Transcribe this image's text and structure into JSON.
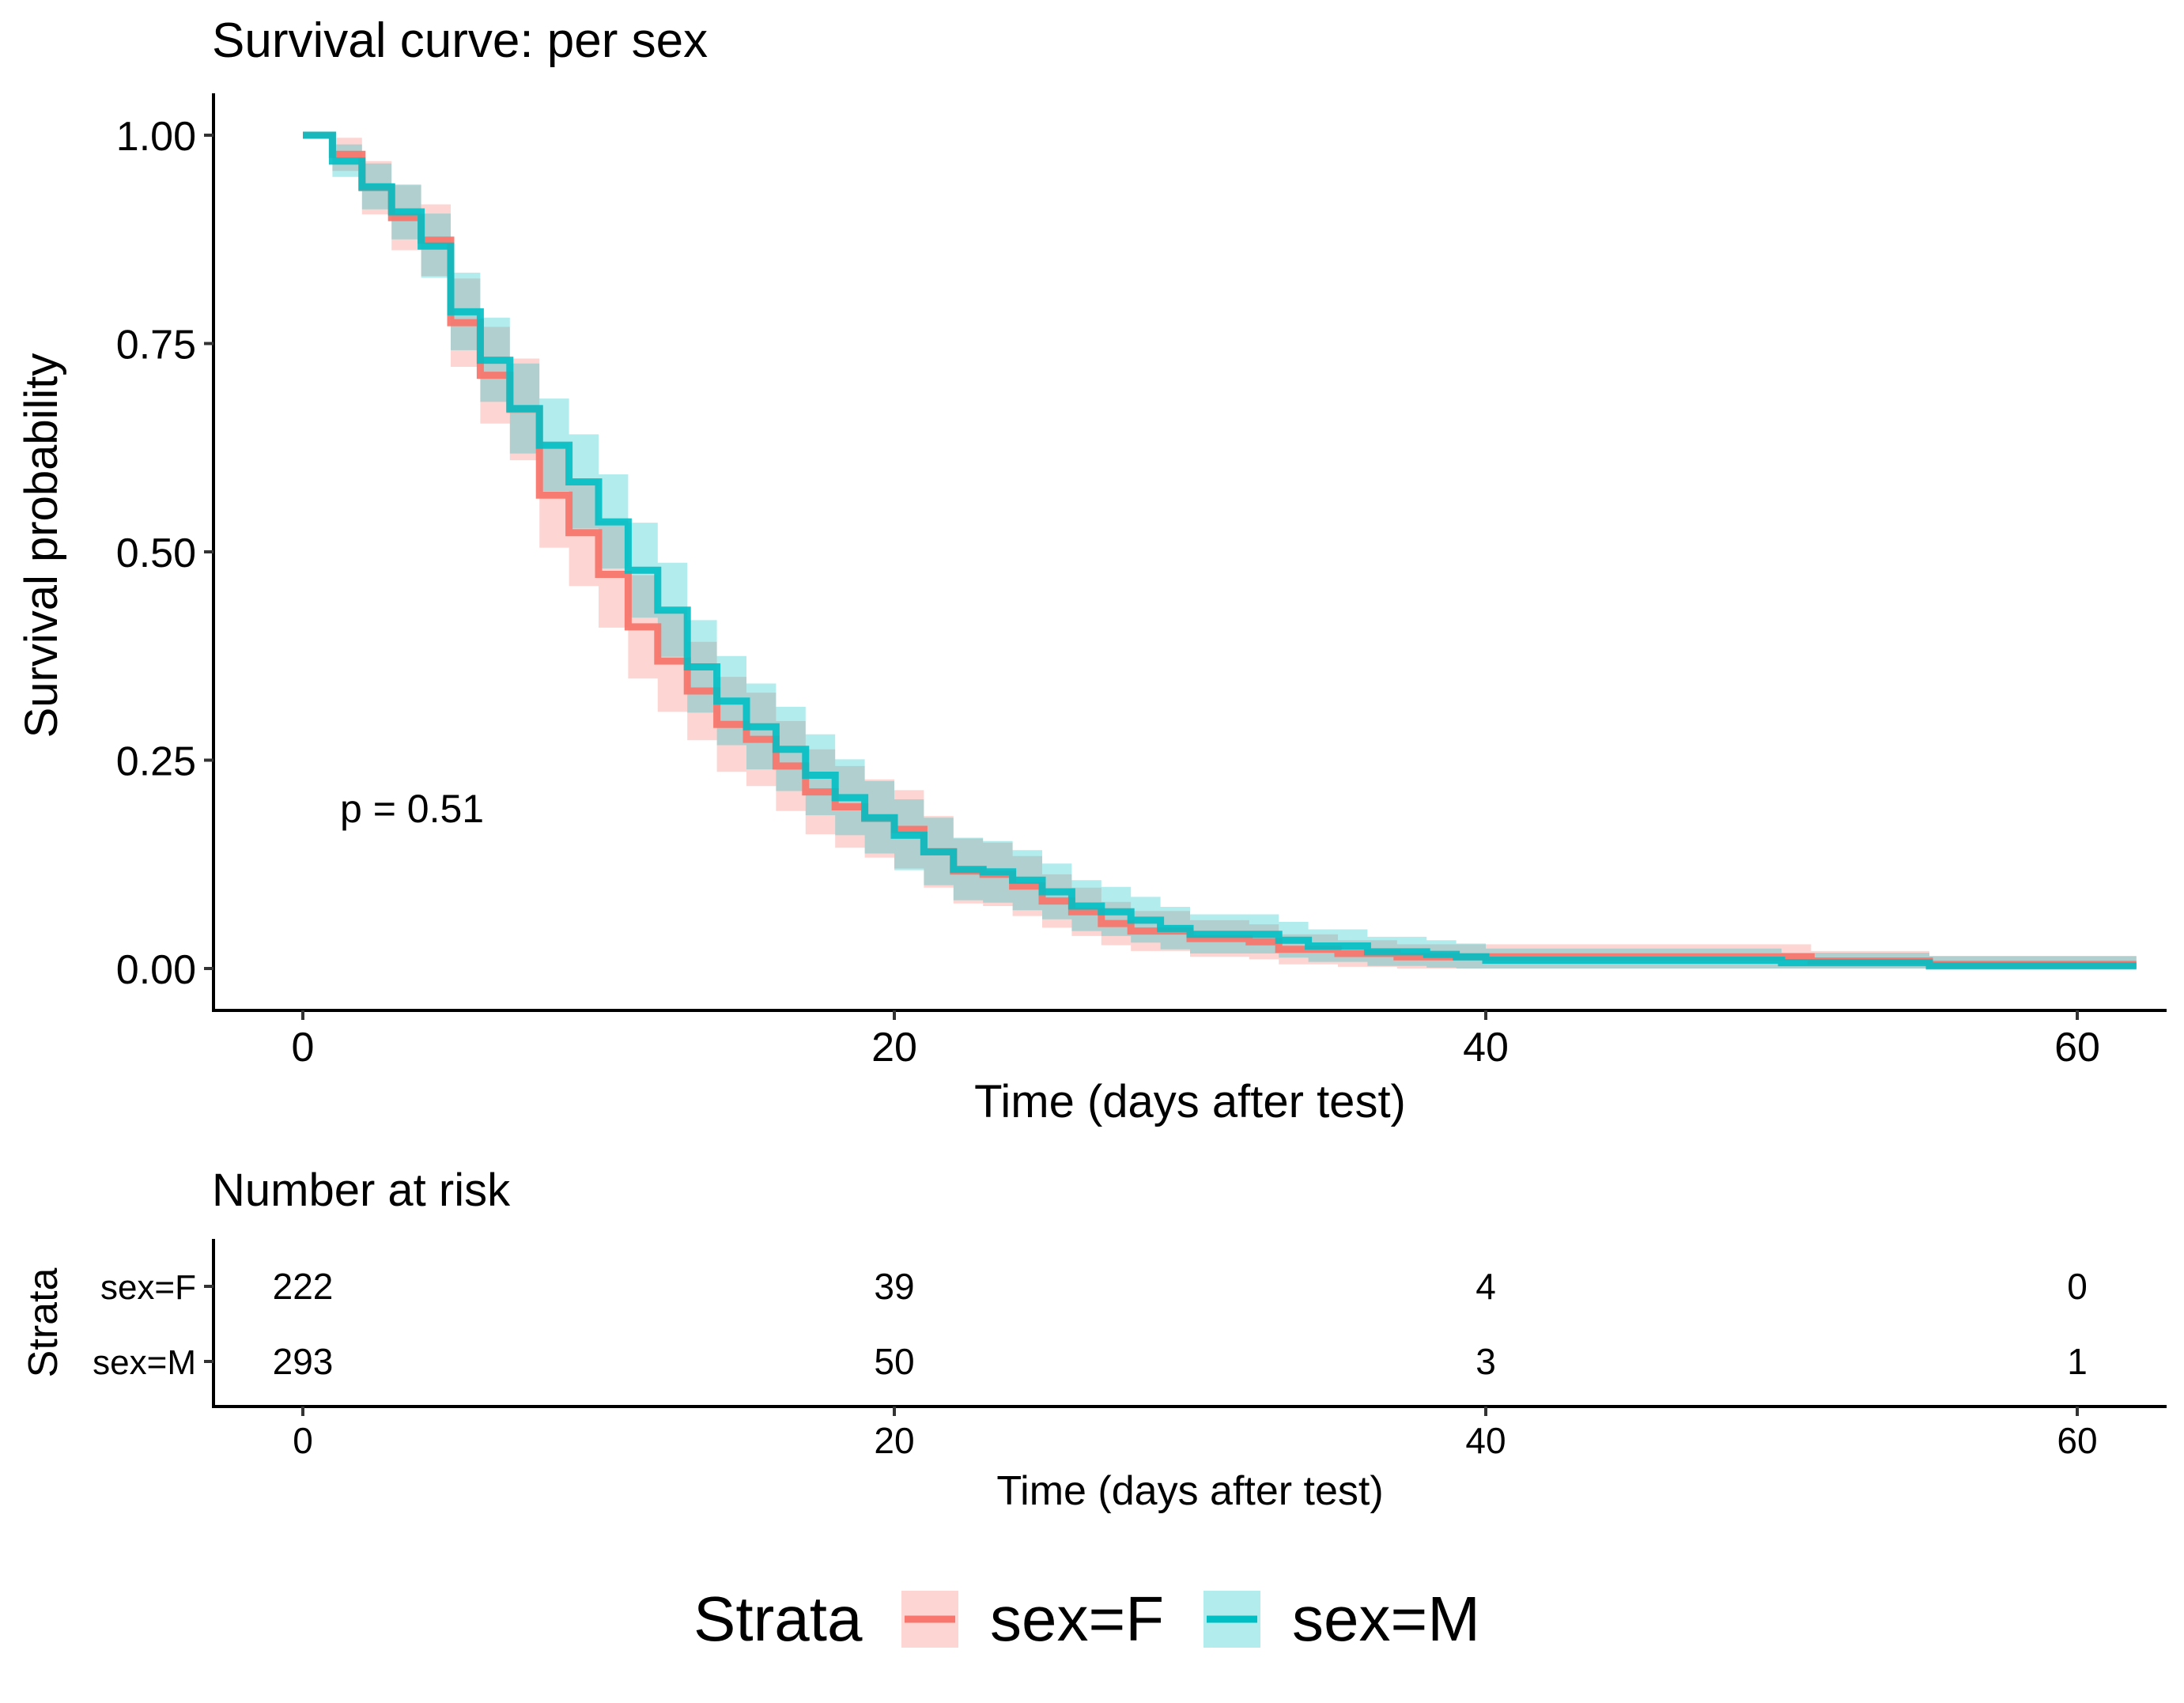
{
  "chart_data": {
    "type": "line",
    "title": "Survival curve: per sex",
    "xlabel": "Time (days after test)",
    "ylabel": "Survival probability",
    "xlim": [
      -3,
      63
    ],
    "ylim": [
      -0.05,
      1.05
    ],
    "x_ticks": [
      0,
      20,
      40,
      60
    ],
    "y_ticks": [
      "0.00",
      "0.25",
      "0.50",
      "0.75",
      "1.00"
    ],
    "y_tick_values": [
      0,
      0.25,
      0.5,
      0.75,
      1
    ],
    "grid": false,
    "annotation": "p = 0.51",
    "series": [
      {
        "name": "sex=F",
        "color": "#F8766D",
        "steps": [
          [
            0,
            1.0
          ],
          [
            1,
            0.977
          ],
          [
            2,
            0.937
          ],
          [
            3,
            0.901
          ],
          [
            4,
            0.874
          ],
          [
            5,
            0.775
          ],
          [
            6,
            0.712
          ],
          [
            7,
            0.671
          ],
          [
            8,
            0.568
          ],
          [
            9,
            0.523
          ],
          [
            10,
            0.473
          ],
          [
            11,
            0.41
          ],
          [
            12,
            0.369
          ],
          [
            13,
            0.333
          ],
          [
            14,
            0.293
          ],
          [
            15,
            0.275
          ],
          [
            16,
            0.243
          ],
          [
            17,
            0.212
          ],
          [
            18,
            0.194
          ],
          [
            19,
            0.18
          ],
          [
            20,
            0.167
          ],
          [
            21,
            0.14
          ],
          [
            22,
            0.117
          ],
          [
            23,
            0.113
          ],
          [
            24,
            0.099
          ],
          [
            25,
            0.081
          ],
          [
            26,
            0.068
          ],
          [
            27,
            0.054
          ],
          [
            28,
            0.045
          ],
          [
            30,
            0.036
          ],
          [
            32,
            0.032
          ],
          [
            33,
            0.023
          ],
          [
            35,
            0.018
          ],
          [
            37,
            0.014
          ],
          [
            40,
            0.014
          ],
          [
            51,
            0.009
          ],
          [
            55,
            0.005
          ],
          [
            62,
            0.005
          ]
        ],
        "band": [
          [
            0,
            1.0,
            1.0
          ],
          [
            1,
            0.957,
            0.997
          ],
          [
            2,
            0.905,
            0.969
          ],
          [
            3,
            0.862,
            0.94
          ],
          [
            4,
            0.831,
            0.917
          ],
          [
            5,
            0.722,
            0.828
          ],
          [
            6,
            0.654,
            0.77
          ],
          [
            7,
            0.61,
            0.732
          ],
          [
            8,
            0.505,
            0.631
          ],
          [
            9,
            0.459,
            0.587
          ],
          [
            10,
            0.409,
            0.537
          ],
          [
            11,
            0.348,
            0.472
          ],
          [
            12,
            0.308,
            0.43
          ],
          [
            13,
            0.274,
            0.392
          ],
          [
            14,
            0.236,
            0.35
          ],
          [
            15,
            0.219,
            0.331
          ],
          [
            16,
            0.189,
            0.297
          ],
          [
            17,
            0.161,
            0.263
          ],
          [
            18,
            0.145,
            0.243
          ],
          [
            19,
            0.133,
            0.227
          ],
          [
            20,
            0.12,
            0.214
          ],
          [
            21,
            0.097,
            0.183
          ],
          [
            22,
            0.078,
            0.156
          ],
          [
            23,
            0.075,
            0.151
          ],
          [
            24,
            0.063,
            0.135
          ],
          [
            25,
            0.049,
            0.113
          ],
          [
            26,
            0.039,
            0.097
          ],
          [
            27,
            0.028,
            0.08
          ],
          [
            28,
            0.021,
            0.069
          ],
          [
            30,
            0.014,
            0.058
          ],
          [
            32,
            0.011,
            0.053
          ],
          [
            33,
            0.005,
            0.041
          ],
          [
            35,
            0.002,
            0.034
          ],
          [
            37,
            0.0,
            0.029
          ],
          [
            40,
            0.0,
            0.029
          ],
          [
            51,
            0.0,
            0.021
          ],
          [
            55,
            0.0,
            0.015
          ],
          [
            62,
            0.0,
            0.015
          ]
        ]
      },
      {
        "name": "sex=M",
        "color": "#00BFC4",
        "steps": [
          [
            0,
            1.0
          ],
          [
            1,
            0.969
          ],
          [
            2,
            0.938
          ],
          [
            3,
            0.908
          ],
          [
            4,
            0.867
          ],
          [
            5,
            0.788
          ],
          [
            6,
            0.73
          ],
          [
            7,
            0.672
          ],
          [
            8,
            0.628
          ],
          [
            9,
            0.584
          ],
          [
            10,
            0.536
          ],
          [
            11,
            0.478
          ],
          [
            12,
            0.43
          ],
          [
            13,
            0.362
          ],
          [
            14,
            0.321
          ],
          [
            15,
            0.29
          ],
          [
            16,
            0.263
          ],
          [
            17,
            0.232
          ],
          [
            18,
            0.205
          ],
          [
            19,
            0.181
          ],
          [
            20,
            0.16
          ],
          [
            21,
            0.14
          ],
          [
            22,
            0.119
          ],
          [
            23,
            0.116
          ],
          [
            24,
            0.106
          ],
          [
            25,
            0.092
          ],
          [
            26,
            0.075
          ],
          [
            27,
            0.068
          ],
          [
            28,
            0.058
          ],
          [
            29,
            0.048
          ],
          [
            30,
            0.041
          ],
          [
            33,
            0.034
          ],
          [
            34,
            0.027
          ],
          [
            36,
            0.02
          ],
          [
            38,
            0.017
          ],
          [
            39,
            0.014
          ],
          [
            40,
            0.01
          ],
          [
            50,
            0.007
          ],
          [
            55,
            0.003
          ],
          [
            62,
            0.003
          ]
        ],
        "band": [
          [
            0,
            1.0,
            1.0
          ],
          [
            1,
            0.95,
            0.989
          ],
          [
            2,
            0.911,
            0.966
          ],
          [
            3,
            0.875,
            0.941
          ],
          [
            4,
            0.829,
            0.906
          ],
          [
            5,
            0.742,
            0.835
          ],
          [
            6,
            0.68,
            0.781
          ],
          [
            7,
            0.618,
            0.726
          ],
          [
            8,
            0.573,
            0.684
          ],
          [
            9,
            0.528,
            0.641
          ],
          [
            10,
            0.48,
            0.593
          ],
          [
            11,
            0.421,
            0.535
          ],
          [
            12,
            0.374,
            0.487
          ],
          [
            13,
            0.307,
            0.418
          ],
          [
            14,
            0.268,
            0.375
          ],
          [
            15,
            0.239,
            0.342
          ],
          [
            16,
            0.213,
            0.314
          ],
          [
            17,
            0.184,
            0.281
          ],
          [
            18,
            0.16,
            0.251
          ],
          [
            19,
            0.138,
            0.225
          ],
          [
            20,
            0.118,
            0.203
          ],
          [
            21,
            0.1,
            0.181
          ],
          [
            22,
            0.082,
            0.157
          ],
          [
            23,
            0.079,
            0.153
          ],
          [
            24,
            0.07,
            0.142
          ],
          [
            25,
            0.059,
            0.126
          ],
          [
            26,
            0.045,
            0.106
          ],
          [
            27,
            0.039,
            0.098
          ],
          [
            28,
            0.031,
            0.086
          ],
          [
            29,
            0.023,
            0.074
          ],
          [
            30,
            0.018,
            0.065
          ],
          [
            33,
            0.013,
            0.056
          ],
          [
            34,
            0.008,
            0.047
          ],
          [
            36,
            0.003,
            0.038
          ],
          [
            38,
            0.001,
            0.034
          ],
          [
            39,
            0.0,
            0.03
          ],
          [
            40,
            0.0,
            0.024
          ],
          [
            50,
            0.0,
            0.019
          ],
          [
            55,
            0.0,
            0.015
          ],
          [
            62,
            0.0,
            0.015
          ]
        ]
      }
    ]
  },
  "risk_table": {
    "title": "Number at risk",
    "ylabel": "Strata",
    "xlabel": "Time (days after test)",
    "x_ticks": [
      0,
      20,
      40,
      60
    ],
    "rows": [
      {
        "label": "sex=F",
        "color": "#F8766D",
        "values": [
          "222",
          "39",
          "4",
          "0"
        ]
      },
      {
        "label": "sex=M",
        "color": "#00BFC4",
        "values": [
          "293",
          "50",
          "3",
          "1"
        ]
      }
    ]
  },
  "legend": {
    "title": "Strata",
    "items": [
      {
        "label": "sex=F",
        "color": "#F8766D"
      },
      {
        "label": "sex=M",
        "color": "#00BFC4"
      }
    ]
  }
}
